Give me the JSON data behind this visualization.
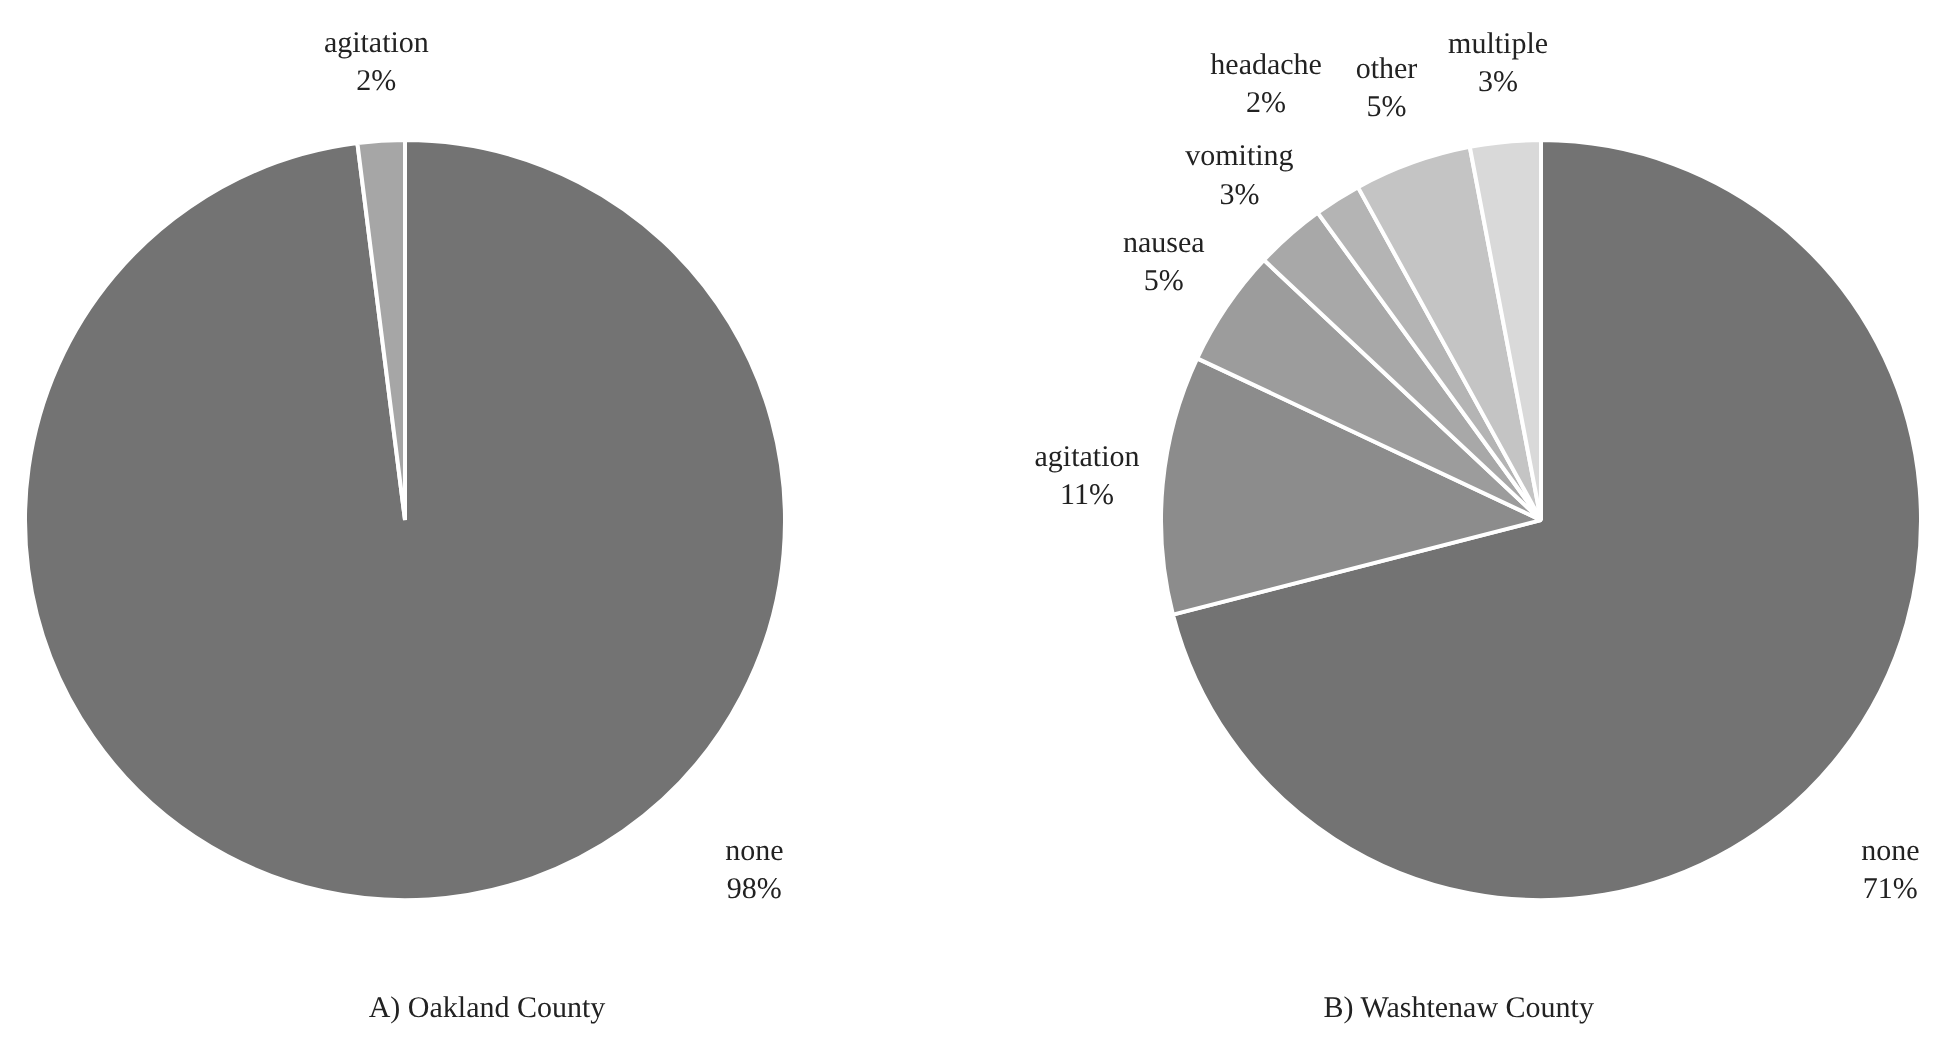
{
  "chart_data": [
    {
      "type": "pie",
      "title": "A) Oakland County",
      "categories": [
        "none",
        "agitation"
      ],
      "values": [
        98,
        2
      ],
      "colors": [
        "#737373",
        "#a6a6a6"
      ],
      "value_labels": [
        "98%",
        "2%"
      ]
    },
    {
      "type": "pie",
      "title": "B) Washtenaw County",
      "categories": [
        "none",
        "agitation",
        "nausea",
        "vomiting",
        "headache",
        "other",
        "multiple"
      ],
      "values": [
        71,
        11,
        5,
        3,
        2,
        5,
        3
      ],
      "colors": [
        "#737373",
        "#8c8c8c",
        "#9c9c9c",
        "#a8a8a8",
        "#b4b4b4",
        "#c4c4c4",
        "#d9d9d9"
      ],
      "value_labels": [
        "71%",
        "11%",
        "5%",
        "3%",
        "2%",
        "5%",
        "3%"
      ]
    }
  ]
}
